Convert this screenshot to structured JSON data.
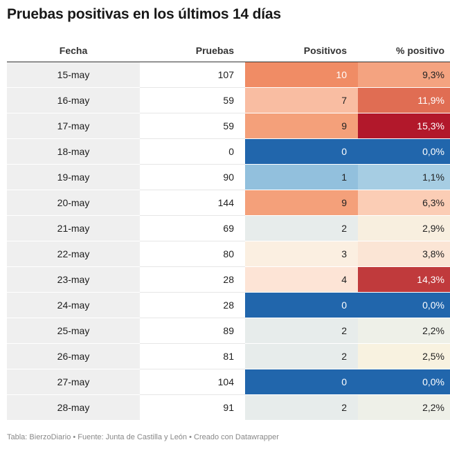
{
  "title": "Pruebas positivas en los últimos 14 días",
  "footer": "Tabla: BierzoDiario • Fuente: Junta de Castilla y León • Creado con Datawrapper",
  "chart_data": {
    "type": "table",
    "columns": [
      "Fecha",
      "Pruebas",
      "Positivos",
      "% positivo"
    ],
    "rows": [
      {
        "fecha": "15-may",
        "pruebas": "107",
        "positivos": "10",
        "pct": "9,3%",
        "pos_color": "#f08c65",
        "pos_text": "#ffffff",
        "pct_color": "#f4a380",
        "pct_text": "#222222"
      },
      {
        "fecha": "16-may",
        "pruebas": "59",
        "positivos": "7",
        "pct": "11,9%",
        "pos_color": "#f9bda2",
        "pos_text": "#222222",
        "pct_color": "#e06d53",
        "pct_text": "#ffffff"
      },
      {
        "fecha": "17-may",
        "pruebas": "59",
        "positivos": "9",
        "pct": "15,3%",
        "pos_color": "#f4a07a",
        "pos_text": "#222222",
        "pct_color": "#b2182b",
        "pct_text": "#ffffff"
      },
      {
        "fecha": "18-may",
        "pruebas": "0",
        "positivos": "0",
        "pct": "0,0%",
        "pos_color": "#2166ac",
        "pos_text": "#ffffff",
        "pct_color": "#2166ac",
        "pct_text": "#ffffff"
      },
      {
        "fecha": "19-may",
        "pruebas": "90",
        "positivos": "1",
        "pct": "1,1%",
        "pos_color": "#92c0dd",
        "pos_text": "#222222",
        "pct_color": "#a6cde3",
        "pct_text": "#222222"
      },
      {
        "fecha": "20-may",
        "pruebas": "144",
        "positivos": "9",
        "pct": "6,3%",
        "pos_color": "#f4a07a",
        "pos_text": "#222222",
        "pct_color": "#fbcdb5",
        "pct_text": "#222222"
      },
      {
        "fecha": "21-may",
        "pruebas": "69",
        "positivos": "2",
        "pct": "2,9%",
        "pos_color": "#e7eceb",
        "pos_text": "#222222",
        "pct_color": "#f8efdf",
        "pct_text": "#222222"
      },
      {
        "fecha": "22-may",
        "pruebas": "80",
        "positivos": "3",
        "pct": "3,8%",
        "pos_color": "#fbefe1",
        "pos_text": "#222222",
        "pct_color": "#fbe5d5",
        "pct_text": "#222222"
      },
      {
        "fecha": "23-may",
        "pruebas": "28",
        "positivos": "4",
        "pct": "14,3%",
        "pos_color": "#fde4d6",
        "pos_text": "#222222",
        "pct_color": "#c03a3c",
        "pct_text": "#ffffff"
      },
      {
        "fecha": "24-may",
        "pruebas": "28",
        "positivos": "0",
        "pct": "0,0%",
        "pos_color": "#2166ac",
        "pos_text": "#ffffff",
        "pct_color": "#2166ac",
        "pct_text": "#ffffff"
      },
      {
        "fecha": "25-may",
        "pruebas": "89",
        "positivos": "2",
        "pct": "2,2%",
        "pos_color": "#e7eceb",
        "pos_text": "#222222",
        "pct_color": "#eef0e8",
        "pct_text": "#222222"
      },
      {
        "fecha": "26-may",
        "pruebas": "81",
        "positivos": "2",
        "pct": "2,5%",
        "pos_color": "#e7eceb",
        "pos_text": "#222222",
        "pct_color": "#f8f2e0",
        "pct_text": "#222222"
      },
      {
        "fecha": "27-may",
        "pruebas": "104",
        "positivos": "0",
        "pct": "0,0%",
        "pos_color": "#2166ac",
        "pos_text": "#ffffff",
        "pct_color": "#2166ac",
        "pct_text": "#ffffff"
      },
      {
        "fecha": "28-may",
        "pruebas": "91",
        "positivos": "2",
        "pct": "2,2%",
        "pos_color": "#e7eceb",
        "pos_text": "#222222",
        "pct_color": "#eef0e8",
        "pct_text": "#222222"
      }
    ]
  }
}
